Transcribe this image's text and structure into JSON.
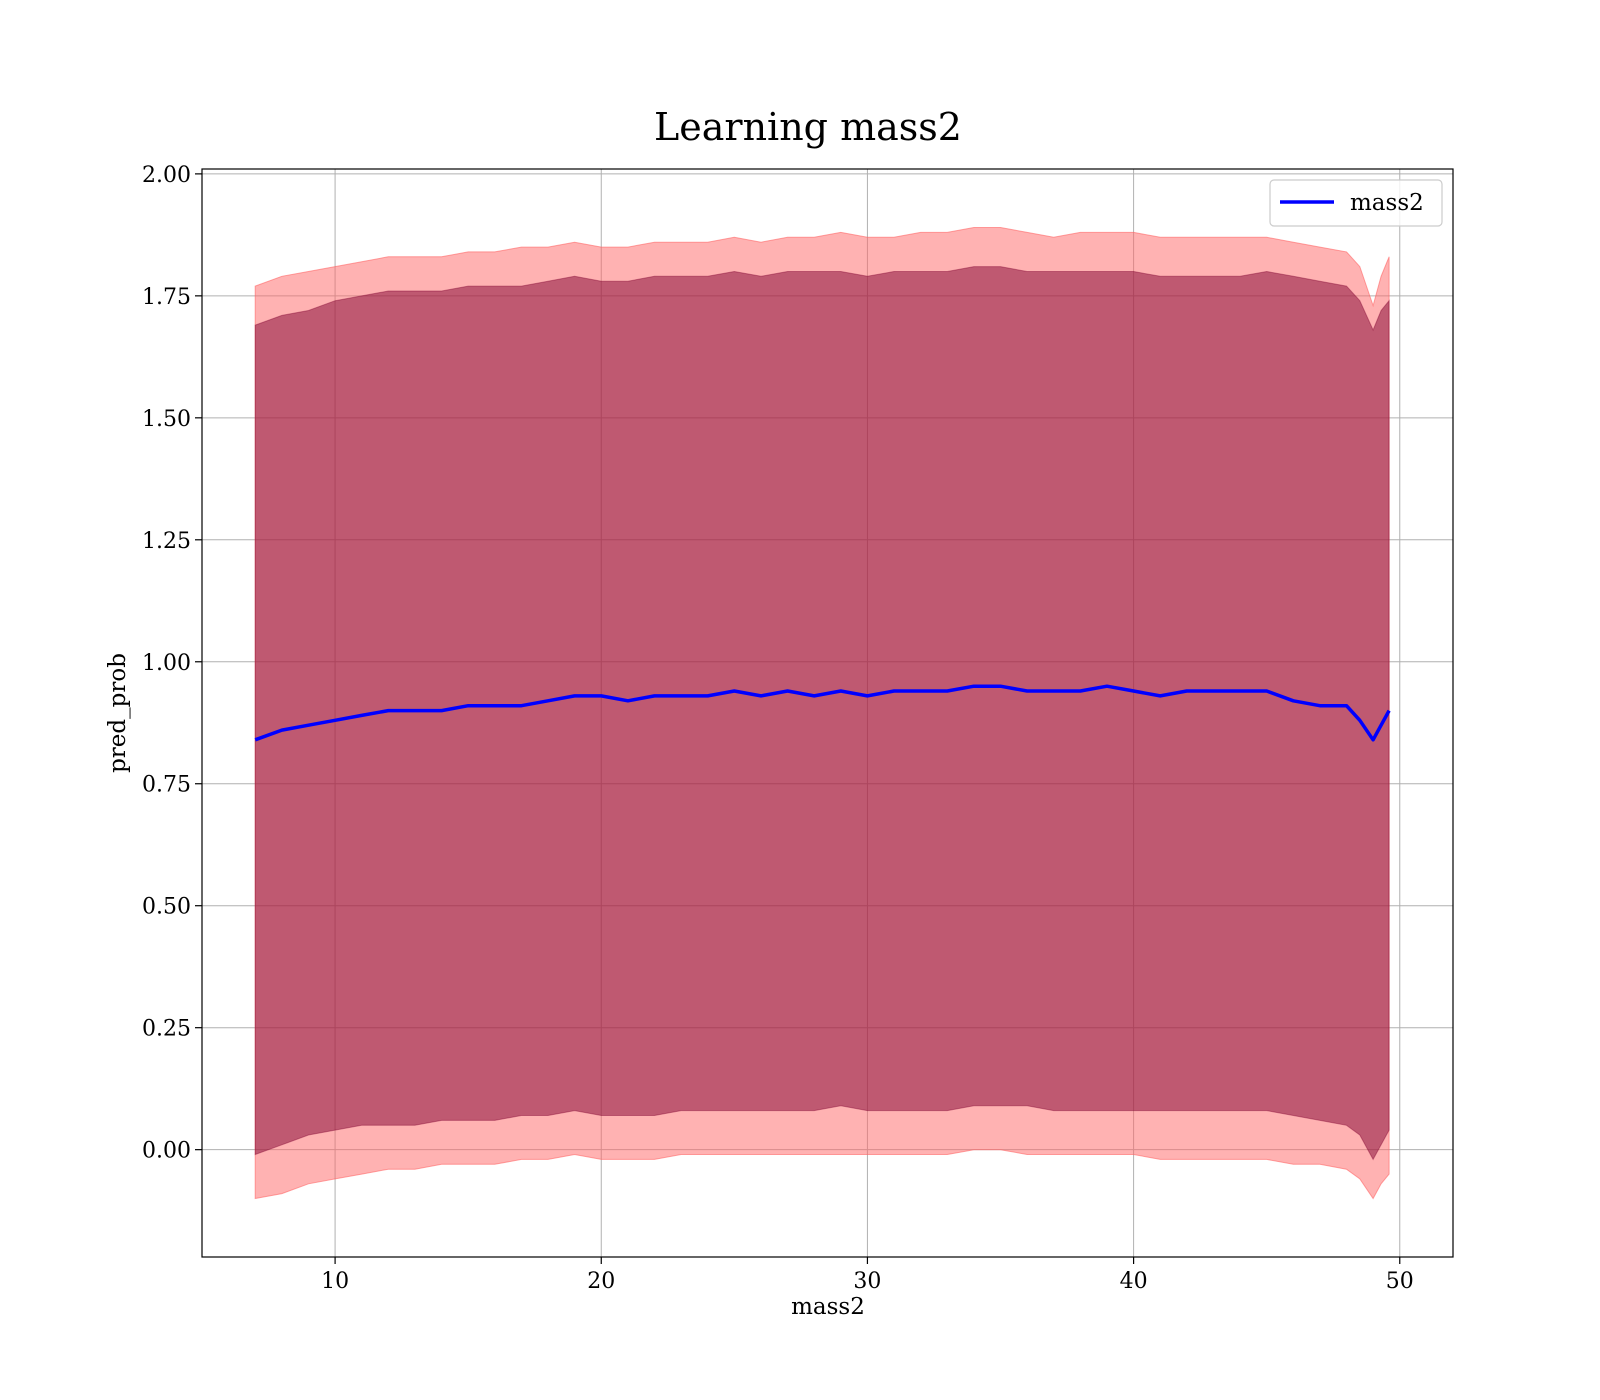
{
  "chart_data": {
    "type": "line",
    "title": "Learning mass2",
    "xlabel": "mass2",
    "ylabel": "pred_prob",
    "xlim": [
      5,
      52
    ],
    "ylim": [
      -0.22,
      2.01
    ],
    "xticks": [
      10,
      20,
      30,
      40,
      50
    ],
    "yticks": [
      0.0,
      0.25,
      0.5,
      0.75,
      1.0,
      1.25,
      1.5,
      1.75,
      2.0
    ],
    "xtick_labels": [
      "10",
      "20",
      "30",
      "40",
      "50"
    ],
    "ytick_labels": [
      "0.00",
      "0.25",
      "0.50",
      "0.75",
      "1.00",
      "1.25",
      "1.50",
      "1.75",
      "2.00"
    ],
    "grid": true,
    "legend": {
      "position": "top-right",
      "entries": [
        "mass2"
      ]
    },
    "colors": {
      "line": "#0000ff",
      "outer_band": "#ff6666",
      "inner_band": "#800030",
      "overlap": "#c89680"
    },
    "x": [
      7.0,
      8.0,
      9.0,
      10.0,
      11.0,
      12.0,
      13.0,
      14.0,
      15.0,
      16.0,
      17.0,
      18.0,
      19.0,
      20.0,
      21.0,
      22.0,
      23.0,
      24.0,
      25.0,
      26.0,
      27.0,
      28.0,
      29.0,
      30.0,
      31.0,
      32.0,
      33.0,
      34.0,
      35.0,
      36.0,
      37.0,
      38.0,
      39.0,
      40.0,
      41.0,
      42.0,
      43.0,
      44.0,
      45.0,
      46.0,
      47.0,
      48.0,
      48.5,
      49.0,
      49.3,
      49.6
    ],
    "series": [
      {
        "name": "mass2",
        "values": [
          0.84,
          0.86,
          0.87,
          0.88,
          0.89,
          0.9,
          0.9,
          0.9,
          0.91,
          0.91,
          0.91,
          0.92,
          0.93,
          0.93,
          0.92,
          0.93,
          0.93,
          0.93,
          0.94,
          0.93,
          0.94,
          0.93,
          0.94,
          0.93,
          0.94,
          0.94,
          0.94,
          0.95,
          0.95,
          0.94,
          0.94,
          0.94,
          0.95,
          0.94,
          0.93,
          0.94,
          0.94,
          0.94,
          0.94,
          0.92,
          0.91,
          0.91,
          0.88,
          0.84,
          0.87,
          0.9
        ]
      }
    ],
    "band_outer": {
      "upper": [
        1.77,
        1.79,
        1.8,
        1.81,
        1.82,
        1.83,
        1.83,
        1.83,
        1.84,
        1.84,
        1.85,
        1.85,
        1.86,
        1.85,
        1.85,
        1.86,
        1.86,
        1.86,
        1.87,
        1.86,
        1.87,
        1.87,
        1.88,
        1.87,
        1.87,
        1.88,
        1.88,
        1.89,
        1.89,
        1.88,
        1.87,
        1.88,
        1.88,
        1.88,
        1.87,
        1.87,
        1.87,
        1.87,
        1.87,
        1.86,
        1.85,
        1.84,
        1.81,
        1.73,
        1.79,
        1.83
      ],
      "lower": [
        -0.1,
        -0.09,
        -0.07,
        -0.06,
        -0.05,
        -0.04,
        -0.04,
        -0.03,
        -0.03,
        -0.03,
        -0.02,
        -0.02,
        -0.01,
        -0.02,
        -0.02,
        -0.02,
        -0.01,
        -0.01,
        -0.01,
        -0.01,
        -0.01,
        -0.01,
        -0.01,
        -0.01,
        -0.01,
        -0.01,
        -0.01,
        0.0,
        0.0,
        -0.01,
        -0.01,
        -0.01,
        -0.01,
        -0.01,
        -0.02,
        -0.02,
        -0.02,
        -0.02,
        -0.02,
        -0.03,
        -0.03,
        -0.04,
        -0.06,
        -0.1,
        -0.07,
        -0.05
      ]
    },
    "band_inner": {
      "upper": [
        1.69,
        1.71,
        1.72,
        1.74,
        1.75,
        1.76,
        1.76,
        1.76,
        1.77,
        1.77,
        1.77,
        1.78,
        1.79,
        1.78,
        1.78,
        1.79,
        1.79,
        1.79,
        1.8,
        1.79,
        1.8,
        1.8,
        1.8,
        1.79,
        1.8,
        1.8,
        1.8,
        1.81,
        1.81,
        1.8,
        1.8,
        1.8,
        1.8,
        1.8,
        1.79,
        1.79,
        1.79,
        1.79,
        1.8,
        1.79,
        1.78,
        1.77,
        1.74,
        1.68,
        1.72,
        1.74
      ],
      "lower": [
        -0.01,
        0.01,
        0.03,
        0.04,
        0.05,
        0.05,
        0.05,
        0.06,
        0.06,
        0.06,
        0.07,
        0.07,
        0.08,
        0.07,
        0.07,
        0.07,
        0.08,
        0.08,
        0.08,
        0.08,
        0.08,
        0.08,
        0.09,
        0.08,
        0.08,
        0.08,
        0.08,
        0.09,
        0.09,
        0.09,
        0.08,
        0.08,
        0.08,
        0.08,
        0.08,
        0.08,
        0.08,
        0.08,
        0.08,
        0.07,
        0.06,
        0.05,
        0.03,
        -0.02,
        0.01,
        0.04
      ]
    }
  }
}
